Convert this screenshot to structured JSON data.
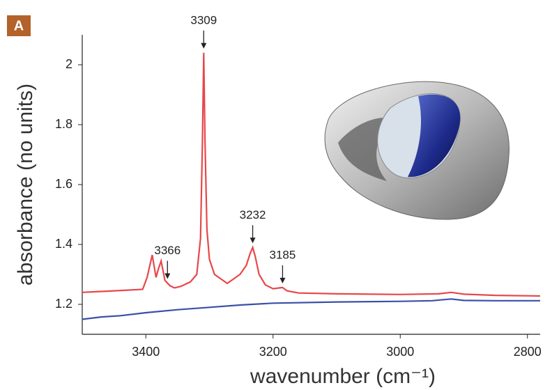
{
  "chart_data": {
    "type": "line",
    "panel_label": "A",
    "x_label": "wavenumber  (cm⁻¹)",
    "y_label": "absorbance (no units)",
    "xlim": [
      3500,
      2780
    ],
    "ylim": [
      1.1,
      2.1
    ],
    "xticks": [
      3400,
      3200,
      3000,
      2800
    ],
    "yticks": [
      1.2,
      1.4,
      1.6,
      1.8,
      2
    ],
    "series": [
      {
        "color": "#e8474a",
        "x": [
          3500,
          3450,
          3405,
          3398,
          3390,
          3384,
          3380,
          3376,
          3370,
          3362,
          3355,
          3345,
          3330,
          3320,
          3314,
          3311,
          3309,
          3307,
          3304,
          3300,
          3292,
          3282,
          3272,
          3262,
          3252,
          3242,
          3236,
          3232,
          3228,
          3222,
          3212,
          3200,
          3190,
          3185,
          3178,
          3160,
          3100,
          3000,
          2940,
          2920,
          2900,
          2850,
          2780
        ],
        "values": [
          1.24,
          1.245,
          1.25,
          1.29,
          1.365,
          1.29,
          1.32,
          1.345,
          1.28,
          1.262,
          1.255,
          1.26,
          1.275,
          1.3,
          1.42,
          1.75,
          2.04,
          1.75,
          1.45,
          1.35,
          1.3,
          1.285,
          1.27,
          1.285,
          1.3,
          1.33,
          1.37,
          1.39,
          1.36,
          1.3,
          1.265,
          1.252,
          1.255,
          1.256,
          1.245,
          1.238,
          1.235,
          1.233,
          1.235,
          1.24,
          1.234,
          1.23,
          1.228
        ]
      },
      {
        "color": "#3b4fa8",
        "x": [
          3500,
          3470,
          3440,
          3400,
          3350,
          3300,
          3250,
          3200,
          3100,
          3000,
          2950,
          2920,
          2900,
          2850,
          2780
        ],
        "values": [
          1.15,
          1.158,
          1.162,
          1.172,
          1.182,
          1.19,
          1.198,
          1.204,
          1.208,
          1.21,
          1.212,
          1.218,
          1.213,
          1.212,
          1.212
        ]
      }
    ],
    "annotations": [
      3309,
      3366,
      3232,
      3185
    ]
  }
}
